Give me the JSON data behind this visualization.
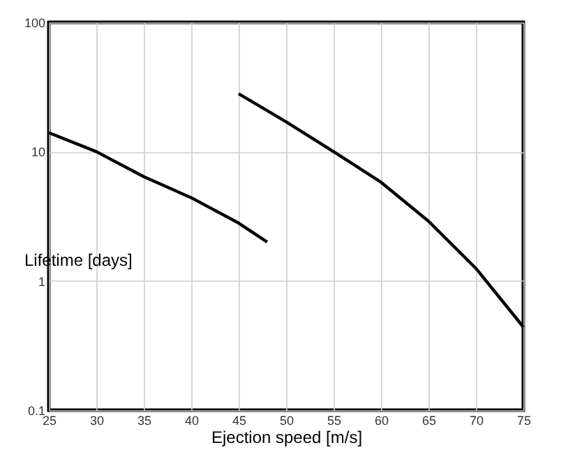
{
  "chart_data": {
    "type": "line",
    "xlabel": "Ejection speed [m/s]",
    "ylabel": "Lifetime [days]",
    "log": "y",
    "xlim": [
      25,
      75
    ],
    "xticks": [
      25,
      30,
      35,
      40,
      45,
      50,
      55,
      60,
      65,
      70,
      75
    ],
    "ylim": [
      0.1,
      100
    ],
    "yticks": [
      0.1,
      1,
      10,
      100
    ],
    "grid": true,
    "line_style": "solid",
    "marker": "none",
    "series": [
      {
        "color": "#000000",
        "x": [
          25,
          30,
          35,
          40,
          45,
          48
        ],
        "values": [
          14,
          10,
          6.4,
          4.4,
          2.8,
          2.0
        ]
      },
      {
        "color": "#000000",
        "x": [
          45,
          50,
          55,
          60,
          65,
          70,
          75
        ],
        "values": [
          28,
          17,
          10,
          5.8,
          2.9,
          1.25,
          0.44
        ]
      }
    ]
  }
}
